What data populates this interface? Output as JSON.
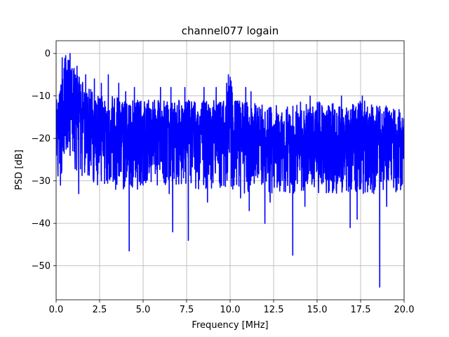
{
  "chart_data": {
    "type": "line",
    "title": "channel077 logain",
    "xlabel": "Frequency [MHz]",
    "ylabel": "PSD [dB]",
    "xlim": [
      0,
      20
    ],
    "ylim": [
      -58,
      3
    ],
    "xticks": [
      0,
      2.5,
      5,
      7.5,
      10,
      12.5,
      15,
      17.5,
      20
    ],
    "xtick_labels": [
      "0.0",
      "2.5",
      "5.0",
      "7.5",
      "10.0",
      "12.5",
      "15.0",
      "17.5",
      "20.0"
    ],
    "yticks": [
      0,
      -10,
      -20,
      -30,
      -40,
      -50
    ],
    "ytick_labels": [
      "0",
      "−10",
      "−20",
      "−30",
      "−40",
      "−50"
    ],
    "grid": true,
    "series": [
      {
        "color": "#0000ff",
        "x": [
          0.0,
          0.25,
          0.5,
          0.75,
          1.0,
          1.25,
          1.5,
          1.75,
          2.0,
          2.25,
          2.5,
          2.75,
          3.0,
          3.25,
          3.5,
          3.75,
          4.0,
          4.25,
          4.5,
          4.75,
          5.0,
          5.25,
          5.5,
          5.75,
          6.0,
          6.25,
          6.5,
          6.75,
          7.0,
          7.25,
          7.5,
          7.75,
          8.0,
          8.25,
          8.5,
          8.75,
          9.0,
          9.25,
          9.5,
          9.75,
          10.0,
          10.25,
          10.5,
          10.75,
          11.0,
          11.25,
          11.5,
          11.75,
          12.0,
          12.25,
          12.5,
          12.75,
          13.0,
          13.25,
          13.5,
          13.75,
          14.0,
          14.25,
          14.5,
          14.75,
          15.0,
          15.25,
          15.5,
          15.75,
          16.0,
          16.25,
          16.5,
          16.75,
          17.0,
          17.25,
          17.5,
          17.75,
          18.0,
          18.25,
          18.5,
          18.75,
          19.0,
          19.25,
          19.5,
          19.75,
          20.0
        ],
        "center": [
          -18,
          -16,
          -12,
          -10,
          -12,
          -13,
          -14,
          -15,
          -16,
          -17,
          -17,
          -17.5,
          -18,
          -18,
          -18,
          -18.5,
          -19,
          -19,
          -18.5,
          -18,
          -18,
          -18,
          -17.5,
          -17.5,
          -17.5,
          -17,
          -17,
          -17,
          -17.5,
          -17.5,
          -17.5,
          -18,
          -18,
          -18,
          -18,
          -18,
          -17,
          -18,
          -18,
          -18.5,
          -18.5,
          -19,
          -19.5,
          -20,
          -20,
          -20.5,
          -20.5,
          -21,
          -21,
          -21,
          -21,
          -21.5,
          -21.5,
          -21.5,
          -21.5,
          -21,
          -21,
          -21,
          -21,
          -20.5,
          -20.5,
          -20.5,
          -20.5,
          -20.5,
          -20.5,
          -20.5,
          -20.5,
          -20.5,
          -20.5,
          -20,
          -20,
          -20,
          -20,
          -20,
          -20,
          -20,
          -20,
          -20,
          -20,
          -20,
          -20
        ],
        "upper": [
          -11,
          -8,
          -1,
          0,
          -3,
          -5,
          -6,
          -8,
          -8,
          -10,
          -10,
          -10,
          -10,
          -10,
          -10,
          -11,
          -11,
          -11,
          -11,
          -11,
          -11,
          -11,
          -11,
          -11,
          -11,
          -11,
          -11,
          -11,
          -11,
          -11,
          -11,
          -11,
          -11,
          -11,
          -11,
          -11,
          -11,
          -11,
          -11,
          -11,
          -5,
          -11,
          -11,
          -11,
          -11,
          -11,
          -12,
          -12,
          -12,
          -12,
          -12,
          -12,
          -12,
          -12,
          -12,
          -12,
          -11,
          -12,
          -12,
          -12,
          -11,
          -11,
          -12,
          -12,
          -11,
          -11,
          -12,
          -12,
          -12,
          -12,
          -11,
          -11,
          -12,
          -12,
          -12,
          -13,
          -12,
          -13,
          -13,
          -13,
          -13
        ],
        "lower": [
          -29,
          -30,
          -25,
          -24,
          -27,
          -28,
          -29,
          -30,
          -31,
          -31,
          -31,
          -31,
          -32,
          -32,
          -32,
          -32,
          -32,
          -32,
          -32,
          -32,
          -31,
          -31,
          -31,
          -31,
          -31,
          -31,
          -31,
          -31,
          -31,
          -31,
          -31,
          -31,
          -32,
          -32,
          -32,
          -32,
          -32,
          -32,
          -32,
          -32,
          -32,
          -32,
          -32,
          -33,
          -33,
          -33,
          -33,
          -33,
          -33,
          -33,
          -33,
          -33,
          -33,
          -33,
          -33,
          -33,
          -33,
          -33,
          -33,
          -33,
          -33,
          -33,
          -33,
          -33,
          -33,
          -33,
          -33,
          -33,
          -33,
          -33,
          -33,
          -33,
          -33,
          -33,
          -33,
          -33,
          -33,
          -33,
          -33,
          -33,
          -33
        ],
        "peaks": [
          {
            "x": 0.35,
            "y": -1
          },
          {
            "x": 0.55,
            "y": -0.5
          },
          {
            "x": 0.8,
            "y": 0
          },
          {
            "x": 1.2,
            "y": -3
          },
          {
            "x": 1.7,
            "y": -5
          },
          {
            "x": 2.2,
            "y": -6
          },
          {
            "x": 2.6,
            "y": -7
          },
          {
            "x": 3.0,
            "y": -5
          },
          {
            "x": 3.6,
            "y": -7
          },
          {
            "x": 4.0,
            "y": -9
          },
          {
            "x": 4.5,
            "y": -8
          },
          {
            "x": 6.0,
            "y": -8
          },
          {
            "x": 6.6,
            "y": -8
          },
          {
            "x": 7.4,
            "y": -8
          },
          {
            "x": 8.5,
            "y": -8
          },
          {
            "x": 9.2,
            "y": -8
          },
          {
            "x": 9.8,
            "y": -7
          },
          {
            "x": 9.9,
            "y": -5
          },
          {
            "x": 10.9,
            "y": -8
          },
          {
            "x": 11.2,
            "y": -9
          },
          {
            "x": 14.6,
            "y": -10
          },
          {
            "x": 16.4,
            "y": -10
          },
          {
            "x": 17.6,
            "y": -10
          }
        ],
        "dips": [
          {
            "x": 0.25,
            "y": -31
          },
          {
            "x": 1.3,
            "y": -33
          },
          {
            "x": 2.6,
            "y": -30
          },
          {
            "x": 4.2,
            "y": -46.5
          },
          {
            "x": 5.0,
            "y": -31
          },
          {
            "x": 6.5,
            "y": -33
          },
          {
            "x": 6.7,
            "y": -42
          },
          {
            "x": 7.6,
            "y": -44
          },
          {
            "x": 8.7,
            "y": -35
          },
          {
            "x": 10.6,
            "y": -34
          },
          {
            "x": 11.1,
            "y": -37
          },
          {
            "x": 12.0,
            "y": -40
          },
          {
            "x": 12.3,
            "y": -35
          },
          {
            "x": 13.6,
            "y": -47.5
          },
          {
            "x": 14.3,
            "y": -36
          },
          {
            "x": 16.9,
            "y": -41
          },
          {
            "x": 17.3,
            "y": -39
          },
          {
            "x": 18.6,
            "y": -55
          },
          {
            "x": 19.0,
            "y": -36
          }
        ]
      }
    ]
  }
}
